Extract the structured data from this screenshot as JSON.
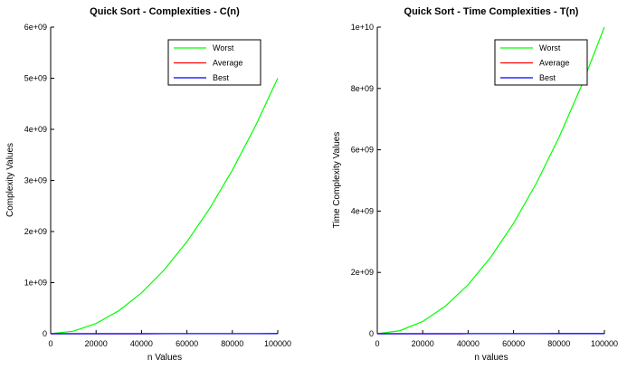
{
  "chart_data": [
    {
      "type": "line",
      "title": "Quick Sort - Complexities - C(n)",
      "xlabel": "n Values",
      "ylabel": "Complexity Values",
      "xlim": [
        0,
        100000
      ],
      "ylim": [
        0,
        6000000000
      ],
      "x_ticks": [
        0,
        20000,
        40000,
        60000,
        80000,
        100000
      ],
      "x_tick_labels": [
        "0",
        "20000",
        "40000",
        "60000",
        "80000",
        "100000"
      ],
      "y_ticks": [
        0,
        1000000000,
        2000000000,
        3000000000,
        4000000000,
        5000000000,
        6000000000
      ],
      "y_tick_labels": [
        "0",
        "1e+09",
        "2e+09",
        "3e+09",
        "4e+09",
        "5e+09",
        "6e+09"
      ],
      "grid": false,
      "legend_position": "top-right",
      "x": [
        0,
        10000,
        20000,
        30000,
        40000,
        50000,
        60000,
        70000,
        80000,
        90000,
        100000
      ],
      "series": [
        {
          "name": "Worst",
          "color": "#00ff00",
          "values": [
            0,
            50000000,
            200000000,
            450000000,
            800000000,
            1250000000,
            1800000000,
            2450000000,
            3200000000,
            4050000000,
            5000000000
          ]
        },
        {
          "name": "Average",
          "color": "#ff0000",
          "values": [
            0,
            132877,
            285754,
            446180,
            611508,
            780482,
            952360,
            1126640,
            1302920,
            1480950,
            1660960
          ]
        },
        {
          "name": "Best",
          "color": "#0000ff",
          "values": [
            0,
            132877,
            285754,
            446180,
            611508,
            780482,
            952360,
            1126640,
            1302920,
            1480950,
            1660960
          ]
        }
      ]
    },
    {
      "type": "line",
      "title": "Quick Sort - Time Complexities - T(n)",
      "xlabel": "n values",
      "ylabel": "Time Complexity Values",
      "xlim": [
        0,
        100000
      ],
      "ylim": [
        0,
        10000000000
      ],
      "x_ticks": [
        0,
        20000,
        40000,
        60000,
        80000,
        100000
      ],
      "x_tick_labels": [
        "0",
        "20000",
        "40000",
        "60000",
        "80000",
        "100000"
      ],
      "y_ticks": [
        0,
        2000000000,
        4000000000,
        6000000000,
        8000000000,
        10000000000
      ],
      "y_tick_labels": [
        "0",
        "2e+09",
        "4e+09",
        "6e+09",
        "8e+09",
        "1e+10"
      ],
      "grid": false,
      "legend_position": "top-right",
      "x": [
        0,
        10000,
        20000,
        30000,
        40000,
        50000,
        60000,
        70000,
        80000,
        90000,
        100000
      ],
      "series": [
        {
          "name": "Worst",
          "color": "#00ff00",
          "values": [
            0,
            100000000,
            400000000,
            900000000,
            1600000000,
            2500000000,
            3600000000,
            4900000000,
            6400000000,
            8100000000,
            10000000000
          ]
        },
        {
          "name": "Average",
          "color": "#ff0000",
          "values": [
            0,
            265754,
            571508,
            892360,
            1223020,
            1560960,
            1904720,
            2253280,
            2605840,
            2961900,
            3321930
          ]
        },
        {
          "name": "Best",
          "color": "#0000ff",
          "values": [
            0,
            265754,
            571508,
            892360,
            1223020,
            1560960,
            1904720,
            2253280,
            2605840,
            2961900,
            3321930
          ]
        }
      ]
    }
  ]
}
